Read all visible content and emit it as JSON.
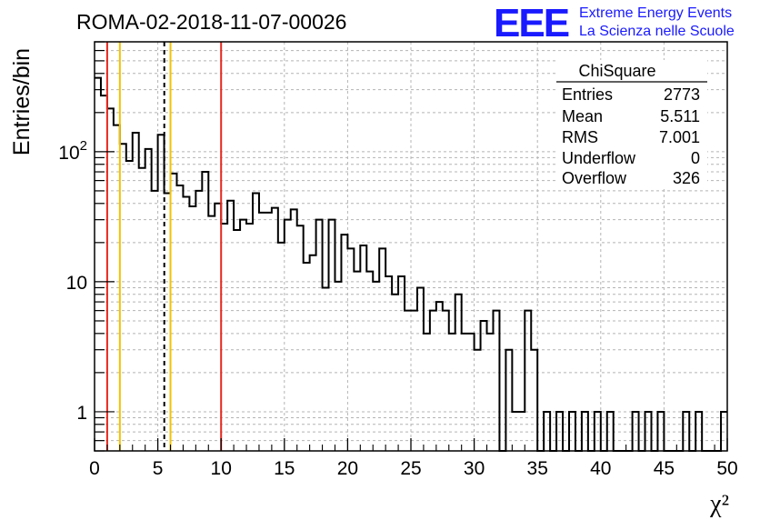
{
  "title": "ROMA-02-2018-11-07-00026",
  "logo": {
    "mark": "EEE",
    "line1": "Extreme Energy Events",
    "line2": "La Scienza nelle Scuole"
  },
  "stats_box": {
    "header": "ChiSquare",
    "rows": [
      {
        "label": "Entries",
        "value": "2773"
      },
      {
        "label": "Mean",
        "value": "5.511"
      },
      {
        "label": "RMS",
        "value": "7.001"
      },
      {
        "label": "Underflow",
        "value": "0"
      },
      {
        "label": "Overflow",
        "value": "326"
      }
    ]
  },
  "chart_data": {
    "type": "bar",
    "histogram_style": "step",
    "ylabel": "Entries/bin",
    "xlabel": "χ²",
    "xlim": [
      0,
      50
    ],
    "ylim": [
      0.5,
      700
    ],
    "yscale": "log",
    "grid": true,
    "bin_width": 0.5,
    "x_ticks": [
      "0",
      "5",
      "10",
      "15",
      "20",
      "25",
      "30",
      "35",
      "40",
      "45",
      "50"
    ],
    "y_ticks": [
      {
        "value": 1,
        "label": "1"
      },
      {
        "value": 10,
        "label": "10"
      },
      {
        "value": 100,
        "label": "10²"
      }
    ],
    "values": [
      370,
      270,
      215,
      160,
      115,
      85,
      140,
      75,
      105,
      50,
      135,
      48,
      68,
      55,
      45,
      38,
      50,
      70,
      32,
      40,
      28,
      42,
      25,
      30,
      28,
      48,
      34,
      34,
      37,
      20,
      30,
      36,
      27,
      14,
      16,
      30,
      9,
      30,
      10,
      23,
      18,
      12,
      19,
      12,
      10,
      18,
      11,
      8,
      11,
      6,
      6,
      9,
      4,
      6,
      7,
      6,
      4,
      8,
      4,
      4,
      3,
      5,
      4,
      6,
      1,
      3,
      1,
      1,
      6,
      3,
      3,
      1,
      1,
      1,
      1,
      1,
      1,
      1,
      1,
      1,
      1,
      1,
      1,
      1,
      1,
      1,
      1,
      1,
      1,
      1,
      1,
      1,
      1,
      1,
      1,
      1,
      1,
      1,
      1,
      1
    ],
    "bin_note_zero": [
      64,
      70,
      72,
      74,
      76,
      78,
      80,
      82,
      83,
      84,
      86,
      88,
      90,
      91,
      92,
      94,
      96,
      97,
      98
    ],
    "vlines": [
      {
        "x": 1,
        "color": "#e8281e",
        "style": "solid"
      },
      {
        "x": 2,
        "color": "#f2c300",
        "style": "solid"
      },
      {
        "x": 5.511,
        "color": "#000000",
        "style": "dashed"
      },
      {
        "x": 6,
        "color": "#f2c300",
        "style": "solid"
      },
      {
        "x": 10,
        "color": "#e8281e",
        "style": "solid"
      }
    ]
  }
}
